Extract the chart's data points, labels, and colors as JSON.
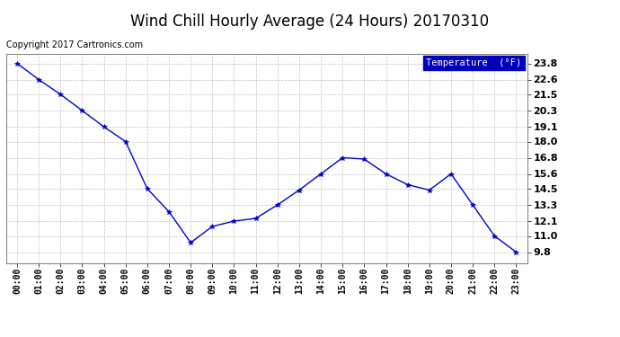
{
  "title": "Wind Chill Hourly Average (24 Hours) 20170310",
  "copyright_text": "Copyright 2017 Cartronics.com",
  "legend_label": "Temperature  (°F)",
  "x_labels": [
    "00:00",
    "01:00",
    "02:00",
    "03:00",
    "04:00",
    "05:00",
    "06:00",
    "07:00",
    "08:00",
    "09:00",
    "10:00",
    "11:00",
    "12:00",
    "13:00",
    "14:00",
    "15:00",
    "16:00",
    "17:00",
    "18:00",
    "19:00",
    "20:00",
    "21:00",
    "22:00",
    "23:00"
  ],
  "y_values": [
    23.8,
    22.6,
    21.5,
    20.3,
    19.1,
    18.0,
    14.5,
    12.8,
    10.5,
    11.7,
    12.1,
    12.3,
    13.3,
    14.4,
    15.6,
    16.8,
    16.7,
    15.6,
    14.8,
    14.4,
    15.6,
    13.3,
    11.0,
    9.8
  ],
  "y_ticks": [
    9.8,
    11.0,
    12.1,
    13.3,
    14.5,
    15.6,
    16.8,
    18.0,
    19.1,
    20.3,
    21.5,
    22.6,
    23.8
  ],
  "ylim_min": 9.0,
  "ylim_max": 24.5,
  "line_color": "#0000cc",
  "marker_color": "#0000cc",
  "bg_color": "#ffffff",
  "plot_bg_color": "#ffffff",
  "grid_color": "#aaaaaa",
  "title_fontsize": 12,
  "copyright_fontsize": 7,
  "tick_fontsize": 8,
  "xtick_fontsize": 7,
  "legend_bg": "#0000bb",
  "legend_text_color": "#ffffff"
}
